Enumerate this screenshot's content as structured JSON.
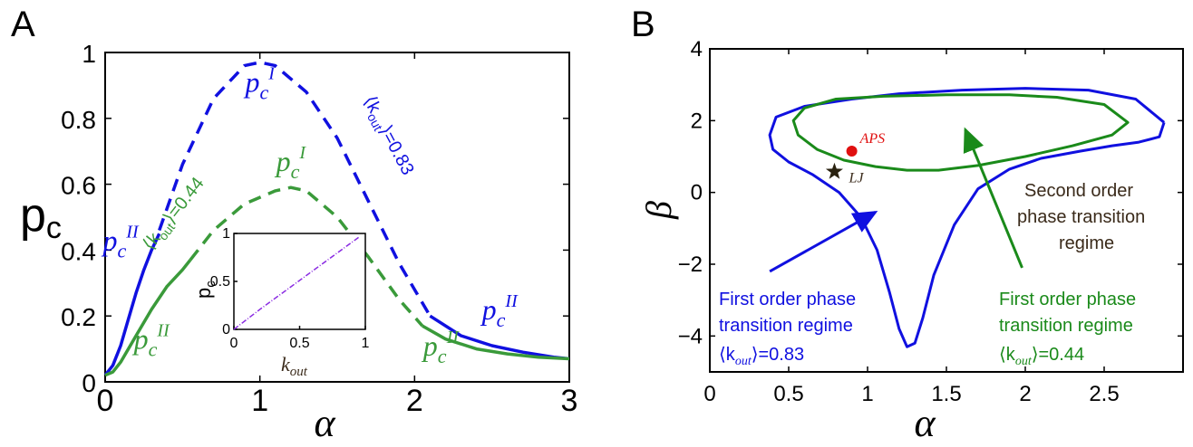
{
  "chart_data": [
    {
      "panel_label": "A",
      "type": "line",
      "xlabel": "α",
      "ylabel": "p",
      "ylabel_sub": "c",
      "xlim": [
        0,
        3
      ],
      "ylim": [
        0,
        1
      ],
      "xticks": [
        "0",
        "1",
        "2",
        "3"
      ],
      "yticks": [
        "0",
        "0.2",
        "0.4",
        "0.6",
        "0.8",
        "1"
      ],
      "colors": {
        "blue": "#1010e0",
        "green": "#3a9a3a"
      },
      "series": [
        {
          "color": "blue",
          "style": "solid",
          "x": [
            0,
            0.05,
            0.1,
            0.15,
            0.2,
            0.25,
            0.3,
            0.35
          ],
          "y": [
            0.02,
            0.05,
            0.11,
            0.19,
            0.27,
            0.34,
            0.4,
            0.45
          ]
        },
        {
          "color": "blue",
          "style": "dashed",
          "x": [
            0.35,
            0.5,
            0.7,
            0.9,
            1.0,
            1.1,
            1.3,
            1.5,
            1.7,
            1.9,
            2.1
          ],
          "y": [
            0.46,
            0.66,
            0.86,
            0.96,
            0.97,
            0.96,
            0.88,
            0.74,
            0.55,
            0.36,
            0.2
          ]
        },
        {
          "color": "blue",
          "style": "solid",
          "x": [
            2.1,
            2.3,
            2.5,
            2.7,
            2.9,
            3.0
          ],
          "y": [
            0.2,
            0.14,
            0.11,
            0.09,
            0.075,
            0.07
          ]
        },
        {
          "color": "green",
          "style": "solid",
          "x": [
            0,
            0.05,
            0.1,
            0.2,
            0.3,
            0.4,
            0.5,
            0.55
          ],
          "y": [
            0.02,
            0.03,
            0.06,
            0.14,
            0.22,
            0.29,
            0.34,
            0.37
          ]
        },
        {
          "color": "green",
          "style": "dashed",
          "x": [
            0.55,
            0.7,
            0.9,
            1.1,
            1.2,
            1.3,
            1.5,
            1.7,
            1.9,
            2.05
          ],
          "y": [
            0.37,
            0.46,
            0.54,
            0.58,
            0.59,
            0.58,
            0.5,
            0.38,
            0.25,
            0.17
          ]
        },
        {
          "color": "green",
          "style": "solid",
          "x": [
            2.05,
            2.2,
            2.4,
            2.6,
            2.8,
            3.0
          ],
          "y": [
            0.17,
            0.13,
            0.1,
            0.085,
            0.075,
            0.07
          ]
        }
      ],
      "annotations": [
        {
          "base": "p",
          "sub": "c",
          "sup": "I",
          "color": "blue",
          "x": 1.0,
          "y": 0.88
        },
        {
          "base": "p",
          "sub": "c",
          "sup": "I",
          "color": "green",
          "x": 1.2,
          "y": 0.64
        },
        {
          "base": "p",
          "sub": "c",
          "sup": "II",
          "color": "blue",
          "x": 0.1,
          "y": 0.4
        },
        {
          "base": "p",
          "sub": "c",
          "sup": "II",
          "color": "green",
          "x": 0.3,
          "y": 0.1
        },
        {
          "base": "p",
          "sub": "c",
          "sup": "II",
          "color": "blue",
          "x": 2.55,
          "y": 0.19
        },
        {
          "base": "p",
          "sub": "c",
          "sup": "II",
          "color": "green",
          "x": 2.17,
          "y": 0.08
        }
      ],
      "curve_labels": [
        {
          "text": "⟨k",
          "sub": "out",
          "rest": "⟩=0.44",
          "color": "green",
          "x": 0.47,
          "y": 0.5
        },
        {
          "text": "⟨k",
          "sub": "out",
          "rest": "⟩=0.83",
          "color": "blue",
          "x": 1.8,
          "y": 0.74
        }
      ],
      "inset": {
        "type": "line",
        "xlabel": "k",
        "xlabel_sub": "out",
        "ylabel": "p",
        "ylabel_sub": "c",
        "xlim": [
          0,
          1
        ],
        "ylim": [
          0,
          1
        ],
        "xticks": [
          "0",
          "0.5",
          "1"
        ],
        "yticks": [
          "0",
          "0.5",
          "1"
        ],
        "line_color": "#8a2be2",
        "x": [
          0,
          0.2,
          0.4,
          0.6,
          0.8,
          0.95
        ],
        "y": [
          0.0,
          0.21,
          0.41,
          0.61,
          0.81,
          0.96
        ]
      }
    },
    {
      "panel_label": "B",
      "type": "line",
      "xlabel": "α",
      "ylabel": "β",
      "xlim": [
        0,
        3
      ],
      "ylim": [
        -5,
        4
      ],
      "xticks": [
        "0",
        "0.5",
        "1",
        "1.5",
        "2",
        "2.5"
      ],
      "yticks": [
        "−4",
        "−2",
        "0",
        "2",
        "4"
      ],
      "colors": {
        "blue": "#1010e0",
        "green": "#1a8a1a",
        "red": "#e01010",
        "dark": "#3a2a1a"
      },
      "series": [
        {
          "color": "blue",
          "style": "solid",
          "closed": false,
          "x": [
            2.88,
            2.7,
            2.4,
            2.0,
            1.6,
            1.2,
            0.9,
            0.6,
            0.42,
            0.38,
            0.4,
            0.5,
            0.65,
            0.82,
            0.96,
            1.06,
            1.14,
            1.2,
            1.25,
            1.3,
            1.35,
            1.42,
            1.55,
            1.7,
            1.9,
            2.1,
            2.35,
            2.55,
            2.72,
            2.85,
            2.88
          ],
          "y": [
            1.95,
            2.6,
            2.85,
            2.9,
            2.85,
            2.75,
            2.6,
            2.4,
            2.1,
            1.6,
            1.2,
            0.85,
            0.5,
            0.0,
            -0.7,
            -1.6,
            -2.8,
            -3.8,
            -4.3,
            -4.2,
            -3.5,
            -2.3,
            -0.9,
            0.1,
            0.65,
            0.95,
            1.15,
            1.3,
            1.4,
            1.55,
            1.95
          ]
        },
        {
          "color": "green",
          "style": "solid",
          "closed": true,
          "x": [
            2.65,
            2.5,
            2.2,
            1.9,
            1.5,
            1.1,
            0.8,
            0.6,
            0.53,
            0.56,
            0.68,
            0.85,
            1.05,
            1.25,
            1.45,
            1.7,
            2.0,
            2.3,
            2.55,
            2.65
          ],
          "y": [
            1.95,
            2.45,
            2.65,
            2.72,
            2.72,
            2.68,
            2.6,
            2.35,
            2.0,
            1.6,
            1.2,
            0.9,
            0.72,
            0.62,
            0.62,
            0.75,
            1.0,
            1.3,
            1.6,
            1.95
          ]
        }
      ],
      "points": [
        {
          "label": "APS",
          "x": 0.9,
          "y": 1.15,
          "color": "red",
          "marker": "circle"
        },
        {
          "label": "LJ",
          "x": 0.79,
          "y": 0.58,
          "color": "dark",
          "marker": "star"
        }
      ],
      "arrows": [
        {
          "color": "blue",
          "from": [
            0.38,
            -2.2
          ],
          "to": [
            1.05,
            -0.55
          ]
        },
        {
          "color": "green",
          "from": [
            1.98,
            -2.1
          ],
          "to": [
            1.62,
            1.75
          ]
        }
      ],
      "text_blocks": [
        {
          "color": "dark",
          "lines": [
            "Second order",
            "phase transition",
            "regime"
          ]
        },
        {
          "color": "blue",
          "lines": [
            "First order phase",
            "transition regime"
          ],
          "k_label": {
            "text": "⟨k",
            "sub": "out",
            "rest": "⟩=0.83"
          }
        },
        {
          "color": "green",
          "lines": [
            "First order phase",
            "transition regime"
          ],
          "k_label": {
            "text": "⟨k",
            "sub": "out",
            "rest": "⟩=0.44"
          }
        }
      ]
    }
  ]
}
